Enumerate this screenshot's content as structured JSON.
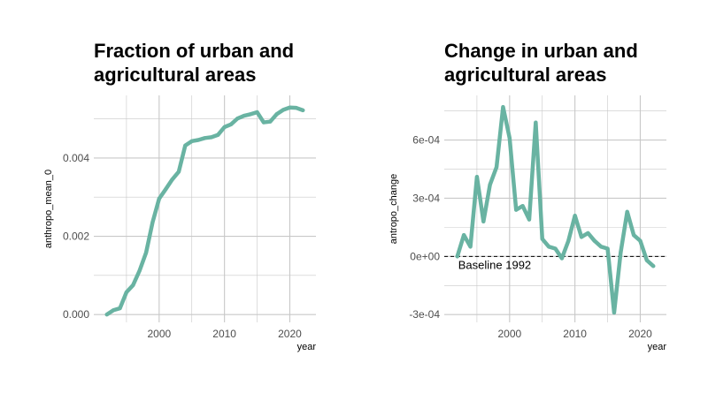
{
  "chart_data": [
    {
      "type": "line",
      "title": "Fraction of urban and agricultural areas",
      "xlabel": "year",
      "ylabel": "anthropo_mean_0",
      "color": "#69b3a2",
      "grid": true,
      "xlim": [
        1990,
        2024
      ],
      "ylim": [
        -0.0002,
        0.0056
      ],
      "xticks": [
        2000,
        2010,
        2020
      ],
      "xtick_labels": [
        "2000",
        "2010",
        "2020"
      ],
      "yticks": [
        0.0,
        0.002,
        0.004
      ],
      "ytick_labels": [
        "0.000",
        "0.002",
        "0.004"
      ],
      "series": [
        {
          "x": [
            1992,
            1993,
            1994,
            1995,
            1996,
            1997,
            1998,
            1999,
            2000,
            2001,
            2002,
            2003,
            2004,
            2005,
            2006,
            2007,
            2008,
            2009,
            2010,
            2011,
            2012,
            2013,
            2014,
            2015,
            2016,
            2017,
            2018,
            2019,
            2020,
            2021,
            2022
          ],
          "values": [
            0.0,
            0.00011,
            0.00016,
            0.00057,
            0.00075,
            0.00112,
            0.00158,
            0.00236,
            0.00296,
            0.0032,
            0.00345,
            0.00365,
            0.00432,
            0.00443,
            0.00446,
            0.00451,
            0.00453,
            0.00459,
            0.00479,
            0.00486,
            0.00501,
            0.00508,
            0.00512,
            0.00517,
            0.00491,
            0.00493,
            0.00512,
            0.00523,
            0.00529,
            0.00528,
            0.00522
          ]
        }
      ]
    },
    {
      "type": "line",
      "title": "Change in urban and agricultural areas",
      "xlabel": "year",
      "ylabel": "antropo_change",
      "color": "#69b3a2",
      "grid": true,
      "xlim": [
        1990,
        2024
      ],
      "ylim": [
        -0.00034,
        0.00083
      ],
      "xticks": [
        2000,
        2010,
        2020
      ],
      "xtick_labels": [
        "2000",
        "2010",
        "2020"
      ],
      "yticks": [
        -0.0003,
        0.0,
        0.0003,
        0.0006
      ],
      "ytick_labels": [
        "-3e-04",
        "0e+00",
        "3e-04",
        "6e-04"
      ],
      "baseline": {
        "y": 0,
        "label": "Baseline 1992"
      },
      "series": [
        {
          "x": [
            1992,
            1993,
            1994,
            1995,
            1996,
            1997,
            1998,
            1999,
            2000,
            2001,
            2002,
            2003,
            2004,
            2005,
            2006,
            2007,
            2008,
            2009,
            2010,
            2011,
            2012,
            2013,
            2014,
            2015,
            2016,
            2017,
            2018,
            2019,
            2020,
            2021,
            2022
          ],
          "values": [
            0.0,
            0.00011,
            5e-05,
            0.00041,
            0.00018,
            0.00037,
            0.00046,
            0.00077,
            0.00061,
            0.00024,
            0.00026,
            0.00019,
            0.00069,
            9e-05,
            5e-05,
            4e-05,
            -1e-05,
            8e-05,
            0.00021,
            0.0001,
            0.00012,
            8e-05,
            5e-05,
            4e-05,
            -0.00029,
            2e-05,
            0.00023,
            0.00011,
            8e-05,
            -2e-05,
            -5e-05
          ]
        }
      ]
    }
  ]
}
